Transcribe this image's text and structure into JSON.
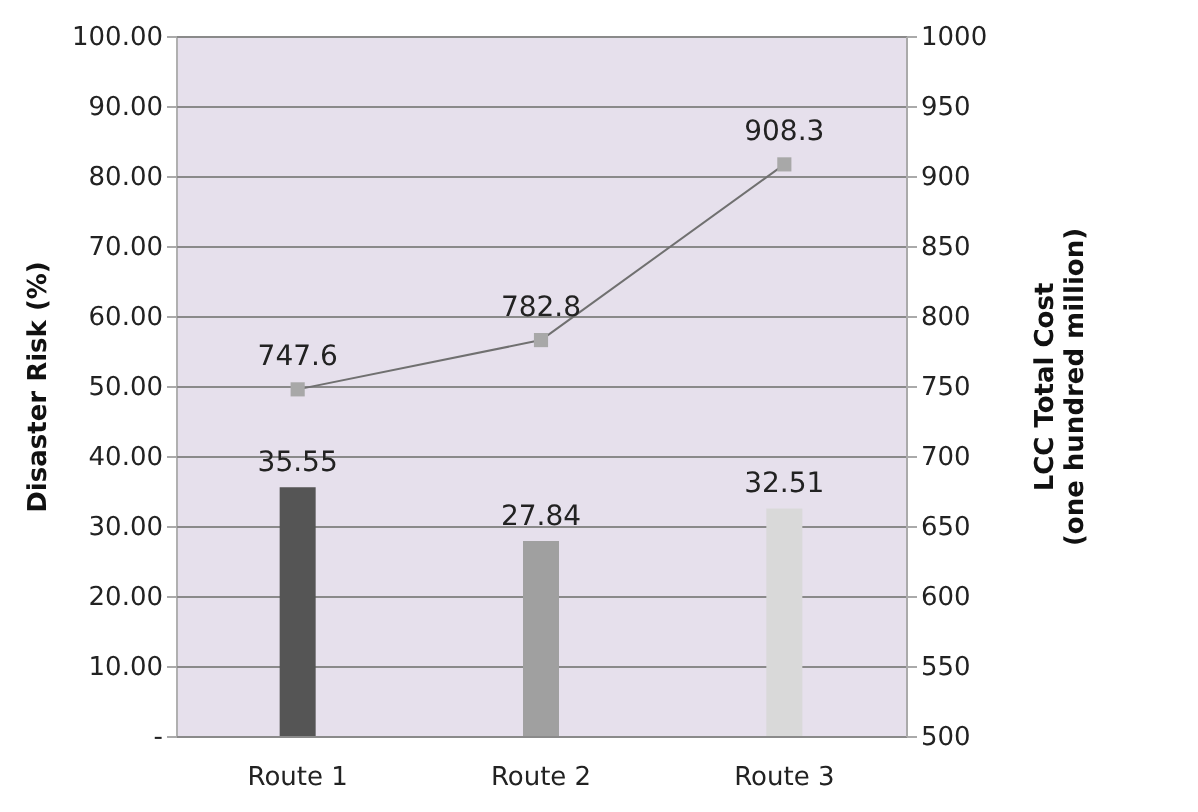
{
  "chart_data": {
    "type": "bar",
    "categories": [
      "Route 1",
      "Route 2",
      "Route 3"
    ],
    "ylabel": "Disaster Risk (%)",
    "y2label": "LCC Total Cost\n(one hundred  million)",
    "series": [
      {
        "values": [
          35.55,
          27.84,
          32.51
        ],
        "colors": [
          "#555555",
          "#a0a0a0",
          "#d9d9d9"
        ]
      },
      {
        "type": "line",
        "axis": "y2",
        "color": "#707070",
        "marker": "square",
        "values": [
          747.6,
          782.8,
          908.3
        ]
      }
    ],
    "ylim": [
      0,
      100
    ],
    "yticks": [
      {
        "value": 0,
        "label": "-"
      },
      {
        "value": 10,
        "label": "10.00"
      },
      {
        "value": 20,
        "label": "20.00"
      },
      {
        "value": 30,
        "label": "30.00"
      },
      {
        "value": 40,
        "label": "40.00"
      },
      {
        "value": 50,
        "label": "50.00"
      },
      {
        "value": 60,
        "label": "60.00"
      },
      {
        "value": 70,
        "label": "70.00"
      },
      {
        "value": 80,
        "label": "80.00"
      },
      {
        "value": 90,
        "label": "90.00"
      },
      {
        "value": 100,
        "label": "100.00"
      }
    ],
    "y2lim": [
      500,
      1000
    ],
    "y2ticks": [
      500,
      550,
      600,
      650,
      700,
      750,
      800,
      850,
      900,
      950,
      1000
    ],
    "grid": "y",
    "data_labels": true
  }
}
